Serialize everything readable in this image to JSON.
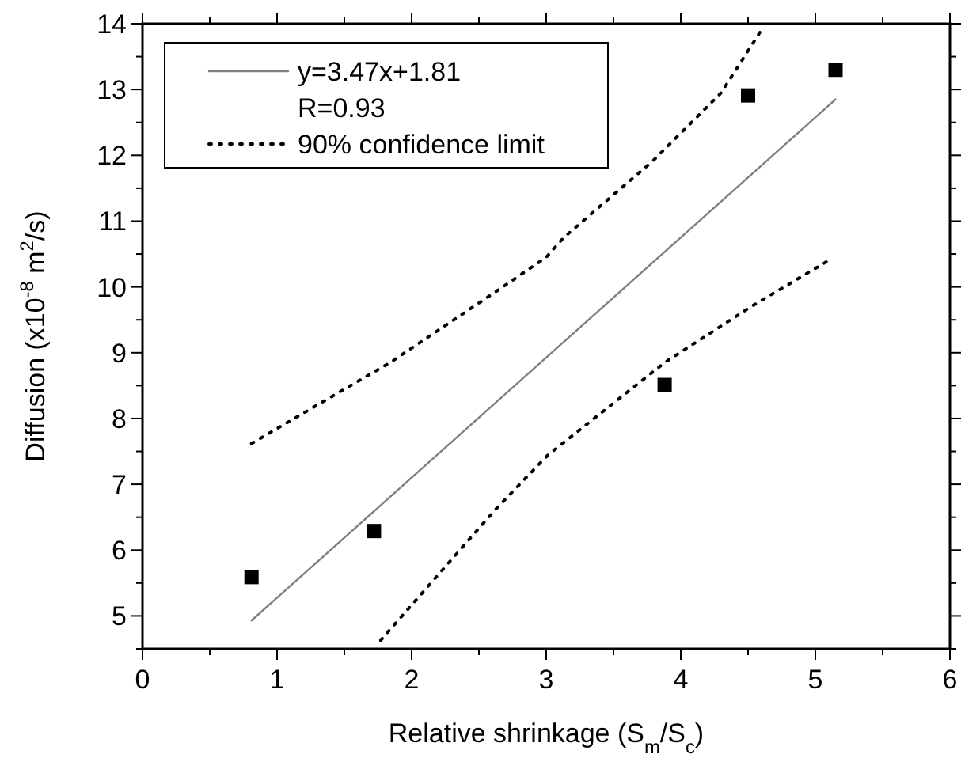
{
  "chart_data": {
    "type": "scatter",
    "xlabel": "Relative shrinkage (S$_{m}$/S$_{c}$)",
    "ylabel": "Diffusion (x10$^{-8}$ m$^{2}$/s)",
    "xlim": [
      0,
      6
    ],
    "ylim": [
      4.5,
      14
    ],
    "xticks": [
      0,
      {
        "value": 0.5,
        "label": null
      },
      1,
      {
        "value": 1.5,
        "label": null
      },
      2,
      {
        "value": 2.5,
        "label": null
      },
      3,
      {
        "value": 3.5,
        "label": null
      },
      4,
      {
        "value": 4.5,
        "label": null
      },
      5,
      {
        "value": 5.5,
        "label": null
      },
      6
    ],
    "yticks": [
      {
        "value": 4.5,
        "label": null
      },
      5,
      {
        "value": 5.5,
        "label": null
      },
      6,
      {
        "value": 6.5,
        "label": null
      },
      7,
      {
        "value": 7.5,
        "label": null
      },
      8,
      {
        "value": 8.5,
        "label": null
      },
      9,
      {
        "value": 9.5,
        "label": null
      },
      10,
      {
        "value": 10.5,
        "label": null
      },
      11,
      {
        "value": 11.5,
        "label": null
      },
      12,
      {
        "value": 12.5,
        "label": null
      },
      13,
      {
        "value": 13.5,
        "label": null
      },
      14
    ],
    "grid": false,
    "legend": "top left",
    "annotations": [
      "R=0.93"
    ],
    "series": [
      {
        "color": "#000000",
        "marker": "square",
        "x": [
          0.81,
          1.72,
          3.88,
          4.5,
          5.15
        ],
        "values": [
          5.59,
          6.29,
          8.51,
          12.91,
          13.3
        ]
      },
      {
        "type": "line",
        "name": "y=3.47x+1.81",
        "color": "#808080",
        "line_style": "solid",
        "marker": "none",
        "x": [
          0.81,
          5.15
        ],
        "values": [
          4.93,
          12.85
        ]
      },
      {
        "type": "line",
        "name": "90% confidence limit",
        "color": "#000000",
        "line_style": "dotted",
        "marker": "none",
        "x": [
          0.81,
          1.47,
          1.84,
          2.62,
          3.0,
          3.13,
          3.79,
          4.3,
          4.61
        ],
        "values": [
          7.62,
          8.41,
          8.85,
          9.92,
          10.45,
          10.75,
          11.91,
          12.95,
          13.94
        ]
      },
      {
        "type": "line",
        "color": "#000000",
        "line_style": "dotted",
        "marker": "none",
        "x": [
          1.77,
          2.62,
          3.01,
          3.88,
          4.53,
          5.13
        ],
        "values": [
          4.63,
          6.61,
          7.44,
          8.85,
          9.71,
          10.44
        ]
      }
    ]
  }
}
